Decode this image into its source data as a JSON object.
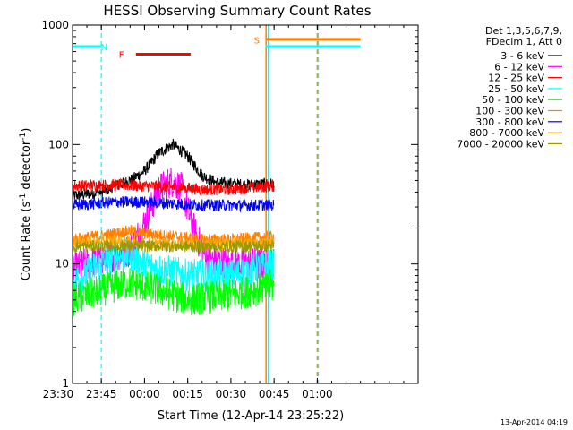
{
  "chart_data": {
    "type": "line",
    "title": "HESSI Observing Summary Count Rates",
    "xlabel": "Start Time (12-Apr-14 23:25:22)",
    "ylabel_main": "Count Rate (s",
    "ylabel_sup1": "-1",
    "ylabel_mid": " detector",
    "ylabel_sup2": "-1",
    "ylabel_end": ")",
    "yscale": "log",
    "xlim_minutes": [
      -25,
      95
    ],
    "ylim": [
      1,
      1000
    ],
    "x_ticks": [
      {
        "label": "23:30",
        "min": -30
      },
      {
        "label": "23:45",
        "min": -15
      },
      {
        "label": "00:00",
        "min": 0
      },
      {
        "label": "00:15",
        "min": 15
      },
      {
        "label": "00:30",
        "min": 30
      },
      {
        "label": "00:45",
        "min": 45
      },
      {
        "label": "01:00",
        "min": 60
      }
    ],
    "y_ticks": [
      {
        "label": "1",
        "value": 1
      },
      {
        "label": "10",
        "value": 10
      },
      {
        "label": "100",
        "value": 100
      },
      {
        "label": "1000",
        "value": 1000
      }
    ],
    "legend_header": [
      "Det 1,3,5,6,7,9,",
      "FDecim 1, Att 0"
    ],
    "legend_position": "top-right outside",
    "series": [
      {
        "name": "3 - 6 keV",
        "color": "#000000",
        "points": [
          [
            -25,
            37
          ],
          [
            -15,
            40
          ],
          [
            -5,
            50
          ],
          [
            0,
            60
          ],
          [
            5,
            85
          ],
          [
            10,
            100
          ],
          [
            15,
            80
          ],
          [
            20,
            55
          ],
          [
            25,
            48
          ],
          [
            35,
            46
          ],
          [
            45,
            47
          ]
        ]
      },
      {
        "name": "6 - 12 keV",
        "color": "#ff00ff",
        "points": [
          [
            -25,
            9
          ],
          [
            -15,
            11
          ],
          [
            -5,
            13
          ],
          [
            0,
            22
          ],
          [
            5,
            42
          ],
          [
            10,
            50
          ],
          [
            13,
            42
          ],
          [
            15,
            28
          ],
          [
            18,
            17
          ],
          [
            22,
            11
          ],
          [
            30,
            10
          ],
          [
            45,
            10
          ]
        ]
      },
      {
        "name": "12 - 25 keV",
        "color": "#ff0000",
        "points": [
          [
            -25,
            45
          ],
          [
            -10,
            46
          ],
          [
            0,
            45
          ],
          [
            10,
            44
          ],
          [
            20,
            42
          ],
          [
            30,
            42
          ],
          [
            45,
            45
          ]
        ]
      },
      {
        "name": "25 - 50 keV",
        "color": "#00ffff",
        "points": [
          [
            -25,
            7
          ],
          [
            -15,
            10
          ],
          [
            -10,
            11.5
          ],
          [
            -5,
            12
          ],
          [
            0,
            10
          ],
          [
            5,
            9
          ],
          [
            15,
            8
          ],
          [
            30,
            8
          ],
          [
            45,
            10
          ]
        ]
      },
      {
        "name": "50 - 100 keV",
        "color": "#00ff00",
        "points": [
          [
            -25,
            5
          ],
          [
            -15,
            6
          ],
          [
            -10,
            6.5
          ],
          [
            -5,
            7
          ],
          [
            0,
            6.5
          ],
          [
            5,
            6
          ],
          [
            15,
            5
          ],
          [
            30,
            5.5
          ],
          [
            45,
            6.5
          ]
        ]
      },
      {
        "name": "100 - 300 keV",
        "color": "#ff8000",
        "points": [
          [
            -25,
            16
          ],
          [
            -10,
            18
          ],
          [
            -5,
            19
          ],
          [
            0,
            18
          ],
          [
            10,
            17
          ],
          [
            20,
            16
          ],
          [
            30,
            16
          ],
          [
            45,
            17
          ]
        ]
      },
      {
        "name": "300 - 800 keV",
        "color": "#0000ff",
        "points": [
          [
            -25,
            31
          ],
          [
            -10,
            33
          ],
          [
            0,
            33
          ],
          [
            10,
            32
          ],
          [
            20,
            31
          ],
          [
            30,
            31
          ],
          [
            45,
            31
          ]
        ]
      },
      {
        "name": "800 - 7000 keV",
        "color": "#ffaa00",
        "points": [
          [
            -25,
            15
          ],
          [
            -10,
            15.5
          ],
          [
            0,
            15
          ],
          [
            20,
            14.5
          ],
          [
            45,
            15
          ]
        ]
      },
      {
        "name": "7000 - 20000 keV",
        "color": "#999900",
        "points": [
          [
            -25,
            14
          ],
          [
            0,
            14.2
          ],
          [
            20,
            14
          ],
          [
            45,
            14.2
          ]
        ]
      }
    ],
    "annotations": [
      {
        "text": "N",
        "color": "#00ffff",
        "label_pos": [
          -14,
          660
        ],
        "line_from": [
          -50,
          660
        ],
        "line_to": [
          -15,
          660
        ],
        "dashed_x": -15
      },
      {
        "text": "F",
        "color": "#ff0000",
        "label_pos": [
          -8,
          570
        ],
        "line_from": [
          -3,
          570
        ],
        "line_to": [
          16,
          570
        ]
      },
      {
        "text": "S",
        "color": "#ff8000",
        "label_pos": [
          39,
          750
        ],
        "line_from": [
          42,
          760
        ],
        "line_to": [
          75,
          760
        ]
      },
      {
        "text": "",
        "color": "#00ffff",
        "line_from": [
          42,
          660
        ],
        "line_to": [
          75,
          660
        ]
      }
    ],
    "vertical_markers": [
      {
        "x": -25,
        "color": "#ff8000",
        "style": "solid"
      },
      {
        "x": 42.2,
        "color": "#ff8000",
        "style": "solid"
      },
      {
        "x": 43,
        "color": "#00ffff",
        "style": "solid"
      },
      {
        "x": 60,
        "color": "#ff8000",
        "style": "dashed"
      },
      {
        "x": 60.3,
        "color": "#00ffff",
        "style": "dashed"
      }
    ],
    "grid": false
  },
  "footer_timestamp": "13-Apr-2014 04:19"
}
